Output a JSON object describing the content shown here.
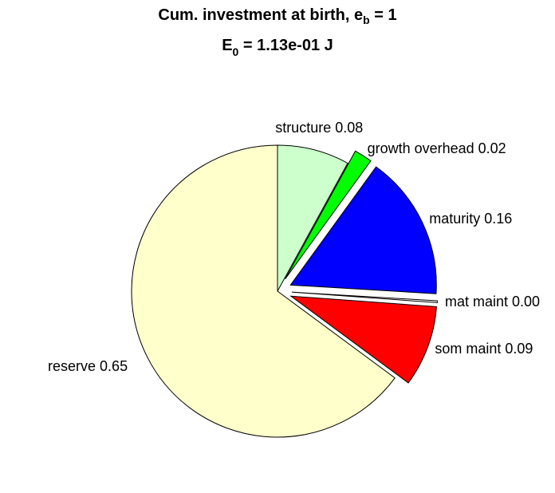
{
  "chart_data": {
    "type": "pie",
    "title": {
      "text": "Cum. investment at birth, e",
      "subscript": "b",
      "suffix": " = 1"
    },
    "subtitle": {
      "text": "E",
      "subscript": "0",
      "suffix": " = 1.13e-01 J"
    },
    "categories": [
      "structure",
      "growth overhead",
      "maturity",
      "mat maint",
      "som maint",
      "reserve"
    ],
    "values": [
      0.08,
      0.02,
      0.16,
      0.002,
      0.09,
      0.65
    ],
    "value_labels": [
      "0.08",
      "0.02",
      "0.16",
      "0.00",
      "0.09",
      "0.65"
    ],
    "colors": [
      "#ccffcc",
      "#00ff00",
      "#0000ff",
      "#ffffff",
      "#ff0000",
      "#ffffcc"
    ],
    "explode": [
      false,
      true,
      true,
      true,
      true,
      false
    ]
  }
}
